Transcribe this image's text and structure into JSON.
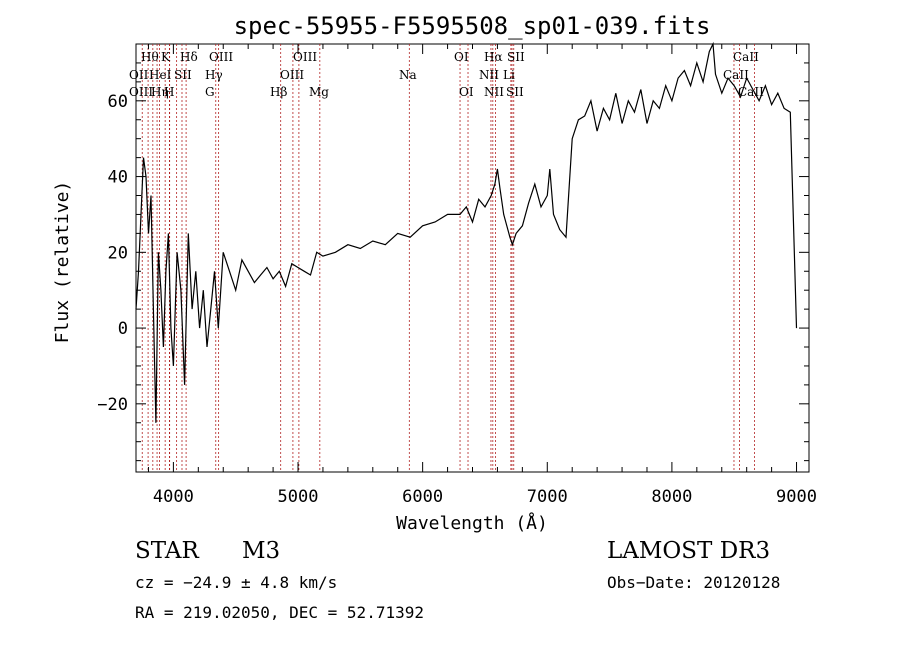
{
  "chart_data": {
    "type": "line",
    "title": "spec-55955-F5595508_sp01-039.fits",
    "xlabel": "Wavelength (Å)",
    "ylabel": "Flux (relative)",
    "xlim": [
      3700,
      9100
    ],
    "ylim": [
      -38,
      75
    ],
    "x_ticks": [
      4000,
      5000,
      6000,
      7000,
      8000,
      9000
    ],
    "y_ticks": [
      -20,
      0,
      20,
      40,
      60
    ],
    "series": [
      {
        "name": "flux",
        "x": [
          3700,
          3720,
          3740,
          3760,
          3780,
          3800,
          3820,
          3840,
          3860,
          3880,
          3900,
          3920,
          3940,
          3960,
          3980,
          4000,
          4030,
          4060,
          4090,
          4120,
          4150,
          4180,
          4210,
          4240,
          4270,
          4300,
          4330,
          4360,
          4400,
          4450,
          4500,
          4550,
          4600,
          4650,
          4700,
          4750,
          4800,
          4850,
          4900,
          4950,
          5000,
          5050,
          5100,
          5150,
          5200,
          5300,
          5400,
          5500,
          5600,
          5700,
          5800,
          5900,
          6000,
          6100,
          6200,
          6300,
          6350,
          6400,
          6450,
          6500,
          6550,
          6580,
          6600,
          6620,
          6650,
          6700,
          6720,
          6750,
          6800,
          6850,
          6900,
          6950,
          7000,
          7020,
          7050,
          7100,
          7150,
          7200,
          7250,
          7300,
          7350,
          7400,
          7450,
          7500,
          7550,
          7600,
          7650,
          7700,
          7750,
          7800,
          7850,
          7900,
          7950,
          8000,
          8050,
          8100,
          8150,
          8200,
          8250,
          8300,
          8330,
          8350,
          8400,
          8450,
          8500,
          8550,
          8600,
          8650,
          8700,
          8750,
          8800,
          8850,
          8900,
          8950,
          9000
        ],
        "y": [
          5,
          15,
          30,
          45,
          40,
          25,
          35,
          5,
          -25,
          20,
          10,
          -5,
          15,
          25,
          0,
          -10,
          20,
          10,
          -15,
          25,
          5,
          15,
          0,
          10,
          -5,
          5,
          15,
          0,
          20,
          15,
          10,
          18,
          15,
          12,
          14,
          16,
          13,
          15,
          11,
          17,
          16,
          15,
          14,
          20,
          19,
          20,
          22,
          21,
          23,
          22,
          25,
          24,
          27,
          28,
          30,
          30,
          32,
          28,
          34,
          32,
          35,
          38,
          42,
          37,
          30,
          24,
          22,
          25,
          27,
          33,
          38,
          32,
          35,
          42,
          30,
          26,
          24,
          50,
          55,
          56,
          60,
          52,
          58,
          55,
          62,
          54,
          60,
          57,
          63,
          54,
          60,
          58,
          64,
          60,
          66,
          68,
          64,
          70,
          65,
          73,
          75,
          67,
          62,
          66,
          64,
          61,
          66,
          63,
          60,
          64,
          59,
          62,
          58,
          57,
          0
        ]
      }
    ],
    "line_labels": {
      "top_row": [
        "Hθ",
        "K",
        "Hδ",
        "OIII",
        "OIII",
        "OI",
        "Hα",
        "SII",
        "CaII"
      ],
      "second_row": [
        "OII",
        "HeI",
        "SII",
        "Hγ",
        "OIII",
        "Na",
        "NII",
        "Li",
        "CaII"
      ],
      "third_row": [
        "OIII",
        "Hη",
        "H",
        "G",
        "Hβ",
        "Mg",
        "OI",
        "NII",
        "SII",
        "CaII"
      ]
    }
  },
  "info": {
    "object_class": "STAR",
    "subclass": "M3",
    "survey": "LAMOST DR3",
    "cz": "cz = −24.9 ± 4.8 km/s",
    "obs_date": "Obs−Date: 20120128",
    "radec": "RA = 219.02050, DEC =  52.71392"
  }
}
